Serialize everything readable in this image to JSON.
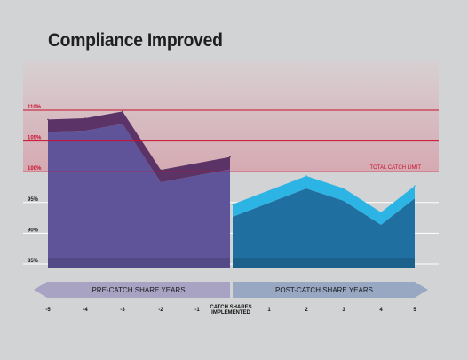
{
  "title": "Compliance Improved",
  "colors": {
    "limit_line": "#c8102e",
    "pre_fill": "#5f5499",
    "pre_top": "#5b3366",
    "post_fill": "#1f6fa0",
    "post_top": "#2bb4e4",
    "arrow": "#9da3bb",
    "background": "#d2d3d4"
  },
  "chart_data": {
    "type": "area",
    "title": "Compliance Improved",
    "x_categories": [
      "-5",
      "-4",
      "-3",
      "-2",
      "-1",
      "1",
      "2",
      "3",
      "4",
      "5"
    ],
    "y_ticks": [
      "85%",
      "90%",
      "95%",
      "100%",
      "105%",
      "110%"
    ],
    "ylim": [
      85,
      110
    ],
    "series": [
      {
        "name": "PRE-CATCH SHARE YEARS",
        "x": [
          "-5",
          "-4",
          "-3",
          "-2",
          "-1"
        ],
        "values": [
          108.5,
          108.7,
          109.8,
          100.3,
          102.4
        ]
      },
      {
        "name": "POST-CATCH SHARE YEARS",
        "x": [
          "1",
          "2",
          "3",
          "4",
          "5"
        ],
        "values": [
          94.7,
          99.3,
          97.3,
          93.4,
          97.7
        ]
      }
    ],
    "reference_lines": [
      {
        "value": 100,
        "label": "TOTAL CATCH LIMIT"
      },
      {
        "value": 105,
        "label": ""
      },
      {
        "value": 110,
        "label": ""
      }
    ],
    "divider_label_line1": "CATCH SHARES",
    "divider_label_line2": "IMPLEMENTED",
    "arrow_labels": [
      "PRE-CATCH SHARE YEARS",
      "POST-CATCH SHARE YEARS"
    ],
    "grid": true
  }
}
